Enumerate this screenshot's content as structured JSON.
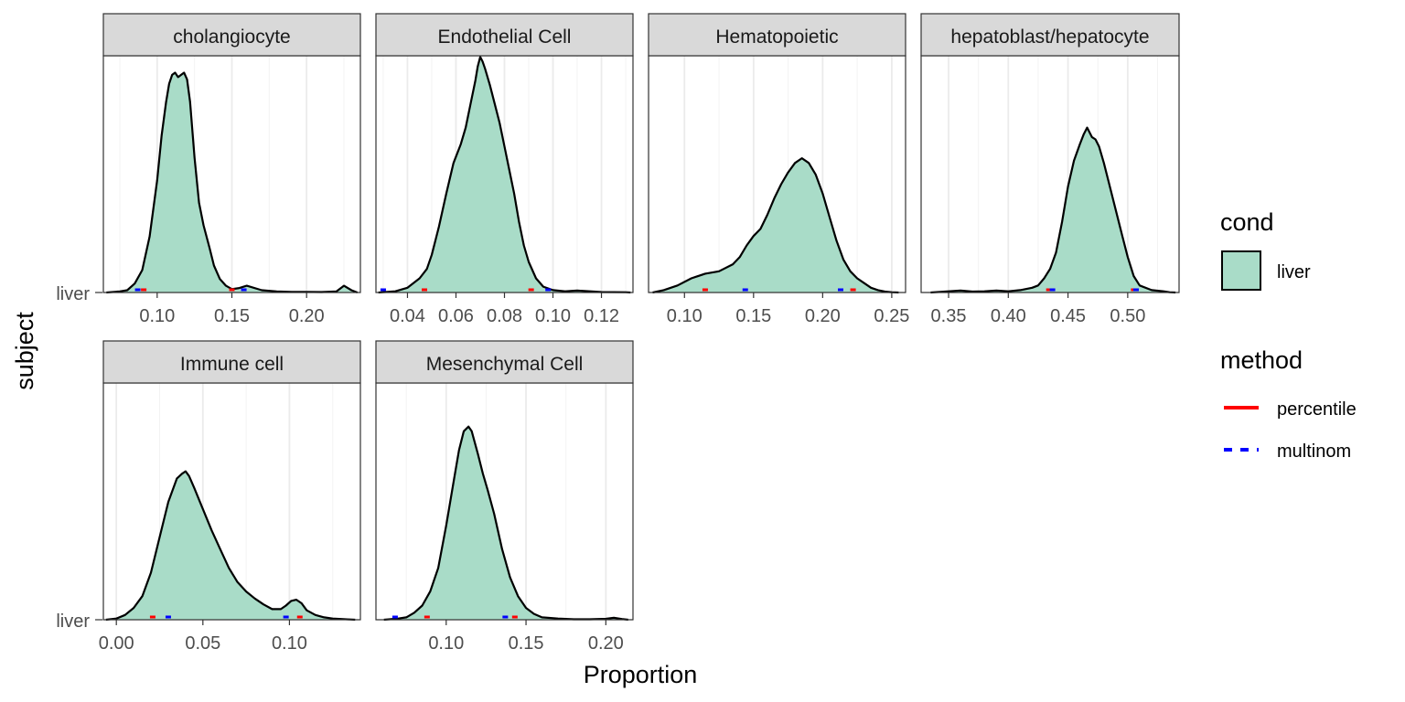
{
  "chart_data": [
    {
      "type": "area",
      "title": "cholangiocyte",
      "xlim": [
        0.064,
        0.236
      ],
      "xticks": [
        0.1,
        0.15,
        0.2
      ],
      "xtick_labels": [
        "0.10",
        "0.15",
        "0.20"
      ],
      "series": [
        {
          "name": "liver",
          "x": [
            0.066,
            0.075,
            0.08,
            0.085,
            0.09,
            0.095,
            0.1,
            0.103,
            0.106,
            0.108,
            0.11,
            0.112,
            0.114,
            0.116,
            0.118,
            0.12,
            0.122,
            0.125,
            0.128,
            0.131,
            0.135,
            0.138,
            0.142,
            0.146,
            0.15,
            0.155,
            0.16,
            0.17,
            0.18,
            0.19,
            0.2,
            0.21,
            0.22,
            0.225,
            0.23,
            0.234
          ],
          "y": [
            0.0,
            0.005,
            0.01,
            0.04,
            0.1,
            0.25,
            0.5,
            0.7,
            0.85,
            0.93,
            0.97,
            0.98,
            0.96,
            0.97,
            0.98,
            0.95,
            0.85,
            0.6,
            0.4,
            0.3,
            0.2,
            0.12,
            0.06,
            0.03,
            0.015,
            0.02,
            0.03,
            0.01,
            0.005,
            0.003,
            0.003,
            0.002,
            0.005,
            0.03,
            0.01,
            0.0
          ],
          "ymax": 1.05
        }
      ],
      "intervals": {
        "percentile": [
          0.091,
          0.15
        ],
        "multinom": [
          0.087,
          0.158
        ]
      }
    },
    {
      "type": "area",
      "title": "Endothelial Cell",
      "xlim": [
        0.027,
        0.133
      ],
      "xticks": [
        0.04,
        0.06,
        0.08,
        0.1,
        0.12
      ],
      "xtick_labels": [
        "0.04",
        "0.06",
        "0.08",
        "0.10",
        "0.12"
      ],
      "series": [
        {
          "name": "liver",
          "x": [
            0.028,
            0.035,
            0.04,
            0.045,
            0.048,
            0.05,
            0.053,
            0.056,
            0.059,
            0.062,
            0.064,
            0.066,
            0.068,
            0.069,
            0.07,
            0.071,
            0.072,
            0.074,
            0.076,
            0.078,
            0.08,
            0.082,
            0.084,
            0.086,
            0.088,
            0.09,
            0.093,
            0.096,
            0.1,
            0.105,
            0.11,
            0.12,
            0.13,
            0.132
          ],
          "y": [
            0.0,
            0.005,
            0.02,
            0.06,
            0.1,
            0.16,
            0.28,
            0.42,
            0.55,
            0.63,
            0.7,
            0.8,
            0.9,
            0.96,
            1.0,
            0.98,
            0.95,
            0.88,
            0.8,
            0.72,
            0.62,
            0.52,
            0.42,
            0.3,
            0.2,
            0.13,
            0.06,
            0.025,
            0.01,
            0.005,
            0.008,
            0.002,
            0.001,
            0.0
          ],
          "ymax": 1.0
        }
      ],
      "intervals": {
        "percentile": [
          0.047,
          0.091
        ],
        "multinom": [
          0.03,
          0.098
        ]
      }
    },
    {
      "type": "area",
      "title": "Hematopoietic",
      "xlim": [
        0.074,
        0.26
      ],
      "xticks": [
        0.1,
        0.15,
        0.2,
        0.25
      ],
      "xtick_labels": [
        "0.10",
        "0.15",
        "0.20",
        "0.25"
      ],
      "series": [
        {
          "name": "liver",
          "x": [
            0.077,
            0.085,
            0.095,
            0.105,
            0.115,
            0.125,
            0.135,
            0.14,
            0.145,
            0.15,
            0.155,
            0.16,
            0.165,
            0.17,
            0.175,
            0.18,
            0.185,
            0.19,
            0.195,
            0.2,
            0.205,
            0.21,
            0.215,
            0.22,
            0.225,
            0.23,
            0.235,
            0.24,
            0.245,
            0.25,
            0.255
          ],
          "y": [
            0.0,
            0.01,
            0.03,
            0.06,
            0.08,
            0.09,
            0.12,
            0.15,
            0.2,
            0.24,
            0.27,
            0.33,
            0.4,
            0.46,
            0.51,
            0.55,
            0.57,
            0.55,
            0.5,
            0.42,
            0.32,
            0.22,
            0.14,
            0.09,
            0.06,
            0.04,
            0.02,
            0.01,
            0.004,
            0.001,
            0.0
          ],
          "ymax": 1.0
        }
      ],
      "intervals": {
        "percentile": [
          0.115,
          0.222
        ],
        "multinom": [
          0.144,
          0.213
        ]
      }
    },
    {
      "type": "area",
      "title": "hepatoblast/hepatocyte",
      "xlim": [
        0.327,
        0.543
      ],
      "xticks": [
        0.35,
        0.4,
        0.45,
        0.5
      ],
      "xtick_labels": [
        "0.35",
        "0.40",
        "0.45",
        "0.50"
      ],
      "series": [
        {
          "name": "liver",
          "x": [
            0.335,
            0.35,
            0.36,
            0.37,
            0.38,
            0.39,
            0.4,
            0.41,
            0.42,
            0.425,
            0.43,
            0.435,
            0.44,
            0.445,
            0.45,
            0.455,
            0.46,
            0.463,
            0.466,
            0.468,
            0.47,
            0.473,
            0.476,
            0.48,
            0.485,
            0.49,
            0.495,
            0.5,
            0.505,
            0.51,
            0.52,
            0.53,
            0.535,
            0.54
          ],
          "y": [
            0.0,
            0.005,
            0.008,
            0.004,
            0.005,
            0.008,
            0.005,
            0.01,
            0.02,
            0.03,
            0.06,
            0.1,
            0.17,
            0.3,
            0.45,
            0.56,
            0.63,
            0.67,
            0.7,
            0.68,
            0.66,
            0.65,
            0.62,
            0.55,
            0.45,
            0.35,
            0.25,
            0.15,
            0.07,
            0.03,
            0.01,
            0.005,
            0.001,
            0.0
          ],
          "ymax": 1.0
        }
      ],
      "intervals": {
        "percentile": [
          0.434,
          0.505
        ],
        "multinom": [
          0.437,
          0.507
        ]
      }
    },
    {
      "type": "area",
      "title": "Immune cell",
      "xlim": [
        -0.0075,
        0.141
      ],
      "xticks": [
        0.0,
        0.05,
        0.1
      ],
      "xtick_labels": [
        "0.00",
        "0.05",
        "0.10"
      ],
      "series": [
        {
          "name": "liver",
          "x": [
            -0.006,
            0.0,
            0.005,
            0.01,
            0.015,
            0.02,
            0.025,
            0.03,
            0.035,
            0.038,
            0.04,
            0.042,
            0.045,
            0.05,
            0.055,
            0.06,
            0.065,
            0.07,
            0.075,
            0.08,
            0.085,
            0.09,
            0.095,
            0.098,
            0.101,
            0.104,
            0.107,
            0.11,
            0.115,
            0.12,
            0.125,
            0.13,
            0.135,
            0.138
          ],
          "y": [
            0.0,
            0.005,
            0.02,
            0.05,
            0.1,
            0.2,
            0.35,
            0.5,
            0.6,
            0.62,
            0.63,
            0.61,
            0.56,
            0.47,
            0.38,
            0.3,
            0.22,
            0.16,
            0.12,
            0.09,
            0.065,
            0.045,
            0.045,
            0.06,
            0.08,
            0.085,
            0.07,
            0.04,
            0.02,
            0.01,
            0.005,
            0.003,
            0.001,
            0.0
          ],
          "ymax": 1.0
        }
      ],
      "intervals": {
        "percentile": [
          0.021,
          0.106
        ],
        "multinom": [
          0.03,
          0.098
        ]
      }
    },
    {
      "type": "area",
      "title": "Mesenchymal Cell",
      "xlim": [
        0.056,
        0.217
      ],
      "xticks": [
        0.1,
        0.15,
        0.2
      ],
      "xtick_labels": [
        "0.10",
        "0.15",
        "0.20"
      ],
      "series": [
        {
          "name": "liver",
          "x": [
            0.061,
            0.07,
            0.075,
            0.08,
            0.085,
            0.09,
            0.095,
            0.1,
            0.105,
            0.108,
            0.111,
            0.114,
            0.116,
            0.118,
            0.12,
            0.123,
            0.126,
            0.13,
            0.135,
            0.14,
            0.145,
            0.15,
            0.155,
            0.16,
            0.17,
            0.18,
            0.19,
            0.2,
            0.205,
            0.21,
            0.214
          ],
          "y": [
            0.0,
            0.005,
            0.01,
            0.03,
            0.06,
            0.12,
            0.22,
            0.4,
            0.6,
            0.72,
            0.8,
            0.82,
            0.8,
            0.75,
            0.7,
            0.62,
            0.55,
            0.45,
            0.3,
            0.18,
            0.1,
            0.05,
            0.025,
            0.01,
            0.005,
            0.002,
            0.002,
            0.004,
            0.008,
            0.003,
            0.0
          ],
          "ymax": 1.0
        }
      ],
      "intervals": {
        "percentile": [
          0.088,
          0.143
        ],
        "multinom": [
          0.068,
          0.137
        ]
      }
    }
  ],
  "axes": {
    "xlabel": "Proportion",
    "ylabel": "subject",
    "ytick_label": "liver"
  },
  "legend": {
    "fill_title": "cond",
    "fill_label": "liver",
    "method_title": "method",
    "method_labels": [
      "percentile",
      "multinom"
    ]
  },
  "colors": {
    "fill": "#a9dcc8",
    "line": "#000000",
    "percentile": "#ff0000",
    "multinom": "#0000ff",
    "strip": "#d9d9d9",
    "grid_major": "#ebebeb",
    "grid_minor": "#f3f3f3"
  }
}
